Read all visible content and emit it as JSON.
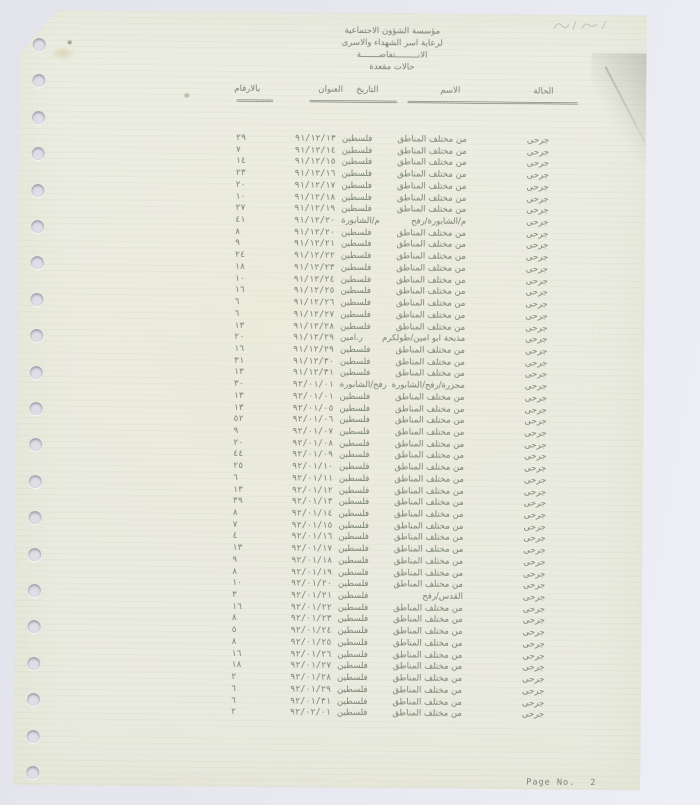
{
  "header": {
    "line1": "مؤسسة الشؤون الاجتماعية",
    "line2": "لرعاية اسر الشهداء والاسرى",
    "line3": "الانـــــــــتفاضـــــــة",
    "line4": "حالات مقعدة"
  },
  "table": {
    "columns": [
      {
        "label": "الحالة",
        "rule": "========="
      },
      {
        "label": "الاسم",
        "rule": "==========================================="
      },
      {
        "label": "التاريخ",
        "rule": "========="
      },
      {
        "label": "العنوان",
        "rule": "=================="
      },
      {
        "label": "بالارقام",
        "rule": "==========="
      }
    ],
    "rows": [
      {
        "status": "جرحى",
        "name": "من مختلف المناطق",
        "date": "٩١/١٢/١٣",
        "address": "فلسطين",
        "num": "٢٩"
      },
      {
        "status": "جرحى",
        "name": "من مختلف المناطق",
        "date": "٩١/١٢/١٤",
        "address": "فلسطين",
        "num": "٧"
      },
      {
        "status": "جرحى",
        "name": "من مختلف المناطق",
        "date": "٩١/١٢/١٥",
        "address": "فلسطين",
        "num": "١٤"
      },
      {
        "status": "جرحى",
        "name": "من مختلف المناطق",
        "date": "٩١/١٢/١٦",
        "address": "فلسطين",
        "num": "٢٣"
      },
      {
        "status": "جرحى",
        "name": "من مختلف المناطق",
        "date": "٩١/١٢/١٧",
        "address": "فلسطين",
        "num": "٢٠"
      },
      {
        "status": "جرحى",
        "name": "من مختلف المناطق",
        "date": "٩١/١٢/١٨",
        "address": "فلسطين",
        "num": "١٠"
      },
      {
        "status": "جرحى",
        "name": "من مختلف المناطق",
        "date": "٩١/١٢/١٩",
        "address": "فلسطين",
        "num": "٢٧"
      },
      {
        "status": "جرحى",
        "name": "م/الشابورة/رفح",
        "date": "٩١/١٢/٢٠",
        "address": "م/الشابورة",
        "num": "٤١"
      },
      {
        "status": "جرحى",
        "name": "من مختلف المناطق",
        "date": "٩١/١٢/٢٠",
        "address": "فلسطين",
        "num": "٨"
      },
      {
        "status": "جرحى",
        "name": "من مختلف المناطق",
        "date": "٩١/١٢/٢١",
        "address": "فلسطين",
        "num": "٩"
      },
      {
        "status": "جرحى",
        "name": "من مختلف المناطق",
        "date": "٩١/١٢/٢٢",
        "address": "فلسطين",
        "num": "٢٤"
      },
      {
        "status": "جرحى",
        "name": "من مختلف المناطق",
        "date": "٩١/١٢/٢٣",
        "address": "فلسطين",
        "num": "١٨"
      },
      {
        "status": "جرحى",
        "name": "من مختلف المناطق",
        "date": "٩١/١٢/٢٤",
        "address": "فلسطين",
        "num": "١٠"
      },
      {
        "status": "جرحى",
        "name": "من مختلف المناطق",
        "date": "٩١/١٢/٢٥",
        "address": "فلسطين",
        "num": "١٦"
      },
      {
        "status": "جرحى",
        "name": "من مختلف المناطق",
        "date": "٩١/١٢/٢٦",
        "address": "فلسطين",
        "num": "٦"
      },
      {
        "status": "جرحى",
        "name": "من مختلف المناطق",
        "date": "٩١/١٢/٢٧",
        "address": "فلسطين",
        "num": "٦"
      },
      {
        "status": "جرحى",
        "name": "من مختلف المناطق",
        "date": "٩١/١٢/٢٨",
        "address": "فلسطين",
        "num": "١٣"
      },
      {
        "status": "جرحى",
        "name": "مذبحة ابو امين/طولكرم",
        "date": "٩١/١٢/٢٩",
        "address": "ر.امين",
        "num": "٢٠"
      },
      {
        "status": "جرحى",
        "name": "من مختلف المناطق",
        "date": "٩١/١٢/٢٩",
        "address": "فلسطين",
        "num": "١٦"
      },
      {
        "status": "جرحى",
        "name": "من مختلف المناطق",
        "date": "٩١/١٢/٣٠",
        "address": "فلسطين",
        "num": "٣١"
      },
      {
        "status": "جرحى",
        "name": "من مختلف المناطق",
        "date": "٩١/١٢/٣١",
        "address": "فلسطين",
        "num": "١٣"
      },
      {
        "status": "جرحى",
        "name": "مجزرة/رفح/الشابورة",
        "date": "٩٢/٠١/٠١",
        "address": "رفح/الشابورة",
        "num": "٣٠"
      },
      {
        "status": "جرحى",
        "name": "من مختلف المناطق",
        "date": "٩٢/٠١/٠١",
        "address": "فلسطين",
        "num": "١٣"
      },
      {
        "status": "جرحى",
        "name": "من مختلف المناطق",
        "date": "٩٢/٠١/٠٥",
        "address": "فلسطين",
        "num": "١٣"
      },
      {
        "status": "جرحى",
        "name": "من مختلف المناطق",
        "date": "٩٢/٠١/٠٦",
        "address": "فلسطين",
        "num": "٥٢"
      },
      {
        "status": "جرحى",
        "name": "من مختلف المناطق",
        "date": "٩٢/٠١/٠٧",
        "address": "فلسطين",
        "num": "٩"
      },
      {
        "status": "جرحى",
        "name": "من مختلف المناطق",
        "date": "٩٢/٠١/٠٨",
        "address": "فلسطين",
        "num": "٢٠"
      },
      {
        "status": "جرحى",
        "name": "من مختلف المناطق",
        "date": "٩٢/٠١/٠٩",
        "address": "فلسطين",
        "num": "٤٤"
      },
      {
        "status": "جرحى",
        "name": "من مختلف المناطق",
        "date": "٩٢/٠١/١٠",
        "address": "فلسطين",
        "num": "٢٥"
      },
      {
        "status": "جرحى",
        "name": "من مختلف المناطق",
        "date": "٩٢/٠١/١١",
        "address": "فلسطين",
        "num": "٦"
      },
      {
        "status": "جرحى",
        "name": "من مختلف المناطق",
        "date": "٩٢/٠١/١٢",
        "address": "فلسطين",
        "num": "١٣"
      },
      {
        "status": "جرحى",
        "name": "من مختلف المناطق",
        "date": "٩٢/٠١/١٣",
        "address": "فلسطين",
        "num": "٣٩"
      },
      {
        "status": "جرحى",
        "name": "من مختلف المناطق",
        "date": "٩٢/٠١/١٤",
        "address": "فلسطين",
        "num": "٨"
      },
      {
        "status": "جرحى",
        "name": "من مختلف المناطق",
        "date": "٩٢/٠١/١٥",
        "address": "فلسطين",
        "num": "٧"
      },
      {
        "status": "جرحى",
        "name": "من مختلف المناطق",
        "date": "٩٢/٠١/١٦",
        "address": "فلسطين",
        "num": "٤"
      },
      {
        "status": "جرحى",
        "name": "من مختلف المناطق",
        "date": "٩٢/٠١/١٧",
        "address": "فلسطين",
        "num": "١٣"
      },
      {
        "status": "جرحى",
        "name": "من مختلف المناطق",
        "date": "٩٢/٠١/١٨",
        "address": "فلسطين",
        "num": "٩"
      },
      {
        "status": "جرحى",
        "name": "من مختلف المناطق",
        "date": "٩٢/٠١/١٩",
        "address": "فلسطين",
        "num": "٨"
      },
      {
        "status": "جرحى",
        "name": "من مختلف المناطق",
        "date": "٩٢/٠١/٢٠",
        "address": "فلسطين",
        "num": "١٠"
      },
      {
        "status": "جرحى",
        "name": "القدس/رفح",
        "date": "٩٢/٠١/٢١",
        "address": "فلسطين",
        "num": "٣"
      },
      {
        "status": "جرحى",
        "name": "من مختلف المناطق",
        "date": "٩٢/٠١/٢٢",
        "address": "فلسطين",
        "num": "١٦"
      },
      {
        "status": "جرحى",
        "name": "من مختلف المناطق",
        "date": "٩٢/٠١/٢٣",
        "address": "فلسطين",
        "num": "٨"
      },
      {
        "status": "جرحى",
        "name": "من مختلف المناطق",
        "date": "٩٢/٠١/٢٤",
        "address": "فلسطين",
        "num": "٥"
      },
      {
        "status": "جرحى",
        "name": "من مختلف المناطق",
        "date": "٩٢/٠١/٢٥",
        "address": "فلسطين",
        "num": "٨"
      },
      {
        "status": "جرحى",
        "name": "من مختلف المناطق",
        "date": "٩٢/٠١/٢٦",
        "address": "فلسطين",
        "num": "١٦"
      },
      {
        "status": "جرحى",
        "name": "من مختلف المناطق",
        "date": "٩٢/٠١/٢٧",
        "address": "فلسطين",
        "num": "١٨"
      },
      {
        "status": "جرحى",
        "name": "من مختلف المناطق",
        "date": "٩٢/٠١/٢٨",
        "address": "فلسطين",
        "num": "٢"
      },
      {
        "status": "جرحى",
        "name": "من مختلف المناطق",
        "date": "٩٢/٠١/٢٩",
        "address": "فلسطين",
        "num": "٦"
      },
      {
        "status": "جرحى",
        "name": "من مختلف المناطق",
        "date": "٩٢/٠١/٣١",
        "address": "فلسطين",
        "num": "٦"
      },
      {
        "status": "جرحى",
        "name": "من مختلف المناطق",
        "date": "٩٢/٠٢/٠١",
        "address": "فلسطين",
        "num": "٢"
      }
    ]
  },
  "footer": {
    "page_label": "Page No.",
    "page_number": "2"
  }
}
